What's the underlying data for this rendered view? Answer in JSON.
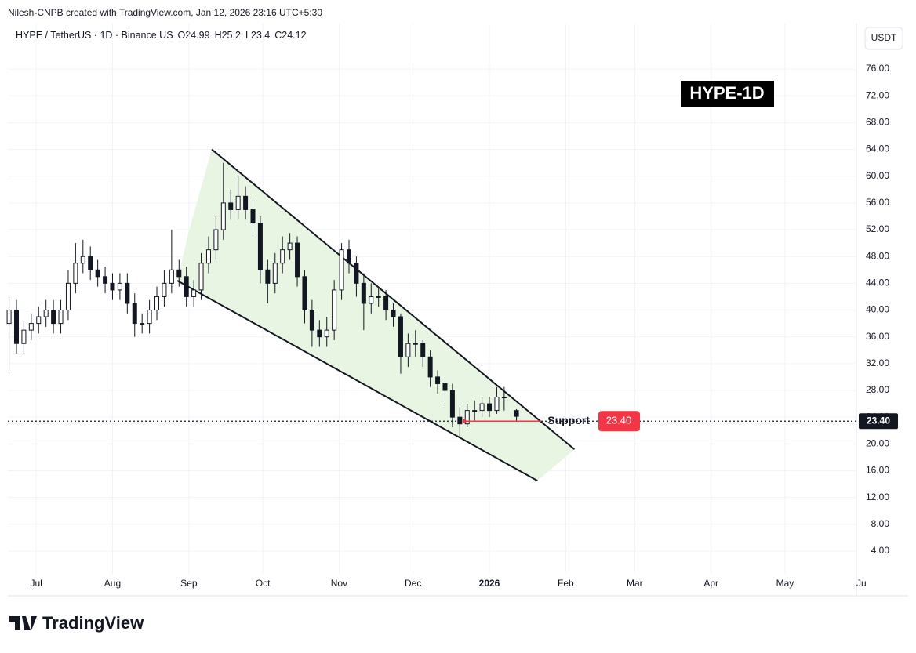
{
  "header": {
    "credit": "Nilesh-CNPB created with TradingView.com, Jan 12, 2026 23:16 UTC+5:30",
    "symbol": "HYPE / TetherUS · 1D · Binance.US",
    "ohlc_labels": [
      "O",
      "H",
      "L",
      "C"
    ],
    "currency": "USDT",
    "logo": "TradingView"
  },
  "chart_data": {
    "type": "candlestick",
    "title": "HYPE-1D",
    "candles": {
      "x": [
        -11,
        -8,
        -5,
        -2,
        1,
        4,
        7,
        10,
        13,
        16,
        19,
        22,
        25,
        28,
        31,
        34,
        37,
        40,
        43,
        46,
        49,
        52,
        55,
        58,
        61,
        64,
        67,
        70,
        73,
        76,
        79,
        82,
        85,
        88,
        91,
        94,
        97,
        100,
        103,
        106,
        109,
        112,
        115,
        118,
        121,
        124,
        127,
        130,
        133,
        136,
        139,
        142,
        145,
        148,
        151,
        154,
        157,
        160,
        163,
        166,
        169,
        172,
        175,
        178,
        181,
        184,
        187,
        190,
        195
      ],
      "open": [
        38,
        40,
        35,
        37,
        38,
        39,
        40,
        38,
        40,
        44,
        47,
        48,
        46,
        45,
        44,
        43,
        44,
        41,
        38,
        38,
        40,
        42,
        44,
        46,
        45,
        42,
        43,
        47,
        49,
        52,
        56,
        55,
        57,
        55,
        53,
        46,
        44,
        47,
        49,
        50,
        45,
        40,
        37,
        36,
        37,
        43,
        49,
        47,
        44,
        41,
        42,
        42,
        40,
        39,
        33,
        35,
        35,
        33,
        30,
        29,
        28,
        24,
        23,
        25,
        25,
        26,
        25,
        27,
        24.99
      ],
      "high": [
        42,
        41.5,
        38.5,
        39.5,
        40.5,
        41.5,
        41.5,
        41.5,
        46,
        50,
        50.5,
        49.5,
        47.5,
        46.5,
        45.5,
        45.5,
        45.5,
        42.5,
        39.5,
        41.5,
        43.5,
        46,
        52,
        47.5,
        46.5,
        44.5,
        48.5,
        51,
        54,
        62,
        58,
        60,
        58.5,
        56.5,
        54,
        47.5,
        48.5,
        51,
        51.5,
        51,
        46,
        41.5,
        38.5,
        39,
        44.5,
        50,
        50.5,
        48,
        45.5,
        44,
        43.5,
        43,
        41,
        39.5,
        36.5,
        37,
        35.5,
        34,
        31,
        30,
        29,
        25.5,
        26,
        26.5,
        27,
        27,
        28.5,
        28.5,
        25.2
      ],
      "low": [
        31,
        33.5,
        33.5,
        35.5,
        36.5,
        37.5,
        36.5,
        36.5,
        38.5,
        42.5,
        45.5,
        44.5,
        43.5,
        42.5,
        41.5,
        41.5,
        39.5,
        36,
        36.5,
        36.5,
        38.5,
        40.5,
        42.5,
        43.5,
        40.5,
        40.5,
        41.5,
        45.5,
        47.5,
        50.5,
        53.5,
        53.5,
        53.5,
        51,
        44,
        41,
        42.5,
        45.5,
        47.5,
        43.5,
        38,
        34.5,
        34.5,
        34.5,
        35.5,
        41.5,
        45.5,
        42,
        37,
        39.5,
        40.5,
        38.5,
        37.5,
        30.5,
        31.5,
        33,
        31.5,
        28.5,
        27.5,
        26,
        22.5,
        21,
        22.5,
        23.5,
        24,
        24,
        24.5,
        25,
        23.4
      ],
      "close": [
        40,
        35,
        37,
        38,
        39,
        40,
        38,
        40,
        44,
        47,
        48,
        46,
        45,
        44,
        43,
        44,
        41,
        38,
        38,
        40,
        42,
        44,
        46,
        45,
        42,
        43,
        47,
        49,
        52,
        56,
        55,
        57,
        55,
        53,
        46,
        44,
        47,
        49,
        50,
        45,
        40,
        37,
        36,
        37,
        43,
        49,
        47,
        44,
        41,
        42,
        42,
        40,
        39,
        33,
        35,
        35,
        33,
        30,
        29,
        28,
        24,
        23,
        25,
        25,
        26,
        25,
        27,
        27,
        24.12
      ]
    },
    "candle_color": "#131722",
    "xlim": [
      -11.5,
      333
    ],
    "ylim": [
      0.6,
      82.8
    ],
    "xticks": [
      {
        "value": 0,
        "label": "Jul"
      },
      {
        "value": 31,
        "label": "Aug"
      },
      {
        "value": 62,
        "label": "Sep"
      },
      {
        "value": 92,
        "label": "Oct"
      },
      {
        "value": 123,
        "label": "Nov"
      },
      {
        "value": 153,
        "label": "Dec"
      },
      {
        "value": 184,
        "label": "2026"
      },
      {
        "value": 215,
        "label": "Feb"
      },
      {
        "value": 243,
        "label": "Mar"
      },
      {
        "value": 274,
        "label": "Apr"
      },
      {
        "value": 304,
        "label": "May"
      },
      {
        "value": 335,
        "label": "Ju"
      }
    ],
    "yticks": [
      {
        "value": 4,
        "label": "4.00"
      },
      {
        "value": 8,
        "label": "8.00"
      },
      {
        "value": 12,
        "label": "12.00"
      },
      {
        "value": 16,
        "label": "16.00"
      },
      {
        "value": 20,
        "label": "20.00"
      },
      {
        "value": 24,
        "label": "24.00"
      },
      {
        "value": 28,
        "label": "28.00"
      },
      {
        "value": 32,
        "label": "32.00"
      },
      {
        "value": 36,
        "label": "36.00"
      },
      {
        "value": 40,
        "label": "40.00"
      },
      {
        "value": 44,
        "label": "44.00"
      },
      {
        "value": 48,
        "label": "48.00"
      },
      {
        "value": 52,
        "label": "52.00"
      },
      {
        "value": 56,
        "label": "56.00"
      },
      {
        "value": 60,
        "label": "60.00"
      },
      {
        "value": 64,
        "label": "64.00"
      },
      {
        "value": 68,
        "label": "68.00"
      },
      {
        "value": 72,
        "label": "72.00"
      },
      {
        "value": 76,
        "label": "76.00"
      }
    ],
    "grid": true,
    "price_line": {
      "value": 23.4,
      "value_label": "23.40"
    },
    "pattern": {
      "color": "#e8f5e3",
      "upper": {
        "x": [
          71.3,
          218.5
        ],
        "y": [
          64,
          19.2
        ]
      },
      "lower": {
        "x": [
          57.3,
          203.5
        ],
        "y": [
          44.4,
          14.5
        ]
      },
      "area": {
        "x": [
          61.8,
          71.3,
          218.5,
          203.5,
          57.3
        ],
        "y": [
          51.5,
          64,
          19.2,
          14.5,
          44.4
        ]
      }
    },
    "support": {
      "label": "Support",
      "value": 23.4,
      "value_label": "23.40",
      "x": [
        173.9,
        205.1
      ],
      "color": "#f23645"
    }
  }
}
